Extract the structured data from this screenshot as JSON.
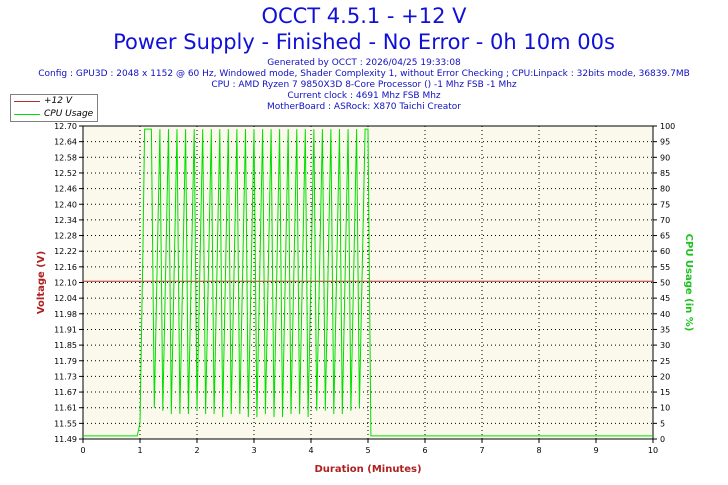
{
  "title": "OCCT 4.5.1 - +12 V",
  "subtitle": "Power Supply - Finished - No Error - 0h 10m 00s",
  "info_lines": [
    "Generated by OCCT : 2026/04/25 19:33:08",
    "Config : GPU3D : 2048 x 1152 @ 60 Hz, Windowed mode, Shader Complexity 1, without Error Checking ; CPU:Linpack : 32bits mode, 36839.7MB",
    "CPU : AMD Ryzen 7 9850X3D 8-Core Processor () -1 Mhz FSB -1 Mhz",
    "Current clock : 4691 Mhz FSB  Mhz",
    "MotherBoard : ASRock: X870 Taichi Creator"
  ],
  "colors": {
    "voltage": "#b03030",
    "cpu": "#00e000",
    "plot_bg": "#fbf8ec",
    "axis_left_label": "#b02020",
    "axis_right_label": "#20c020",
    "xlabel": "#b02020"
  },
  "chart_data": {
    "type": "line",
    "xlabel": "Duration (Minutes)",
    "ylabel": "Voltage (V)",
    "y2label": "CPU Usage (in %)",
    "xlim": [
      0,
      10
    ],
    "ylim": [
      11.49,
      12.7
    ],
    "y2lim": [
      0,
      100
    ],
    "x_ticks": [
      "0",
      "1",
      "2",
      "3",
      "4",
      "5",
      "6",
      "7",
      "8",
      "9",
      "10"
    ],
    "y_ticks": [
      "11.49",
      "11.55",
      "11.61",
      "11.67",
      "11.73",
      "11.79",
      "11.85",
      "11.91",
      "11.98",
      "12.04",
      "12.10",
      "12.16",
      "12.22",
      "12.28",
      "12.34",
      "12.40",
      "12.46",
      "12.52",
      "12.58",
      "12.64",
      "12.70"
    ],
    "y2_ticks": [
      "0",
      "5",
      "10",
      "15",
      "20",
      "25",
      "30",
      "35",
      "40",
      "45",
      "50",
      "55",
      "60",
      "65",
      "70",
      "75",
      "80",
      "85",
      "90",
      "95",
      "100"
    ],
    "legend": {
      "position": "top-left",
      "entries": [
        "+12 V",
        "CPU Usage"
      ]
    },
    "grid": true,
    "series": [
      {
        "name": "+12 V",
        "axis": "left",
        "x": [
          0,
          10
        ],
        "y": [
          12.1,
          12.1
        ]
      },
      {
        "name": "CPU Usage",
        "axis": "right",
        "x": [
          0,
          0.5,
          0.95,
          1.0,
          1.05,
          1.08,
          1.2,
          1.25,
          1.35,
          1.4,
          1.5,
          1.55,
          1.65,
          1.7,
          1.8,
          1.85,
          1.95,
          2.0,
          2.1,
          2.15,
          2.25,
          2.3,
          2.4,
          2.45,
          2.55,
          2.6,
          2.7,
          2.75,
          2.85,
          2.9,
          3.0,
          3.05,
          3.15,
          3.2,
          3.3,
          3.35,
          3.45,
          3.5,
          3.6,
          3.65,
          3.75,
          3.8,
          3.9,
          3.95,
          4.05,
          4.1,
          4.2,
          4.25,
          4.35,
          4.4,
          4.5,
          4.55,
          4.65,
          4.7,
          4.8,
          4.85,
          4.95,
          5.0,
          5.05,
          5.5,
          6.0,
          6.5,
          7.0,
          7.5,
          8.0,
          8.5,
          9.0,
          9.5,
          10.0
        ],
        "y": [
          1,
          1,
          1,
          5,
          60,
          99,
          99,
          10,
          99,
          9,
          99,
          8,
          99,
          8,
          99,
          8,
          99,
          9,
          99,
          8,
          99,
          8,
          99,
          7,
          99,
          8,
          99,
          8,
          99,
          7,
          99,
          7,
          99,
          8,
          99,
          7,
          99,
          7,
          99,
          8,
          99,
          8,
          99,
          7,
          99,
          9,
          99,
          9,
          99,
          8,
          99,
          8,
          99,
          9,
          99,
          10,
          99,
          99,
          1,
          1,
          1,
          1,
          1,
          1,
          1,
          1,
          1,
          1,
          1
        ]
      }
    ]
  }
}
